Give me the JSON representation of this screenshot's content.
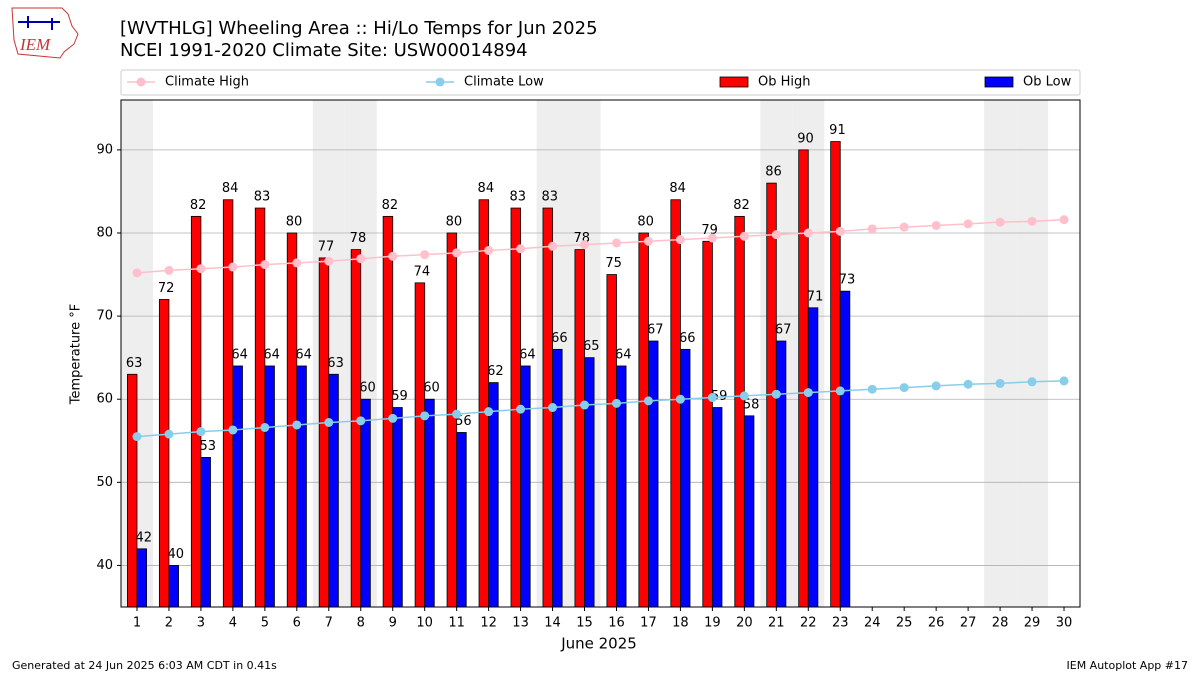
{
  "chart_data": {
    "type": "bar",
    "logo_text": "IEM",
    "title": "[WVTHLG] Wheeling Area :: Hi/Lo Temps for Jun 2025",
    "subtitle": "NCEI 1991-2020 Climate Site: USW00014894",
    "x_label": "June 2025",
    "y_label": "Temperature °F",
    "footer_left": "Generated at 24 Jun 2025 6:03 AM CDT in 0.41s",
    "footer_right": "IEM Autoplot App #17",
    "x": [
      1,
      2,
      3,
      4,
      5,
      6,
      7,
      8,
      9,
      10,
      11,
      12,
      13,
      14,
      15,
      16,
      17,
      18,
      19,
      20,
      21,
      22,
      23,
      24,
      25,
      26,
      27,
      28,
      29,
      30
    ],
    "xlim": [
      0.5,
      30.5
    ],
    "xticks": [
      1,
      2,
      3,
      4,
      5,
      6,
      7,
      8,
      9,
      10,
      11,
      12,
      13,
      14,
      15,
      16,
      17,
      18,
      19,
      20,
      21,
      22,
      23,
      24,
      25,
      26,
      27,
      28,
      29,
      30
    ],
    "ylim": [
      35,
      96
    ],
    "yticks": [
      40,
      50,
      60,
      70,
      80,
      90
    ],
    "grid": true,
    "shaded_days": [
      1,
      7,
      8,
      14,
      15,
      21,
      22,
      28,
      29
    ],
    "legend": "top",
    "series": [
      {
        "name": "Climate High",
        "kind": "line",
        "color": "#ffc0cb",
        "values": [
          75.2,
          75.5,
          75.7,
          75.9,
          76.2,
          76.4,
          76.6,
          76.9,
          77.2,
          77.4,
          77.6,
          77.9,
          78.1,
          78.4,
          78.6,
          78.8,
          79.0,
          79.2,
          79.4,
          79.6,
          79.8,
          80.0,
          80.2,
          80.5,
          80.7,
          80.9,
          81.1,
          81.3,
          81.4,
          81.6
        ]
      },
      {
        "name": "Climate Low",
        "kind": "line",
        "color": "#87ceeb",
        "values": [
          55.5,
          55.8,
          56.1,
          56.3,
          56.6,
          56.9,
          57.2,
          57.4,
          57.7,
          58.0,
          58.2,
          58.5,
          58.8,
          59.0,
          59.3,
          59.5,
          59.8,
          60.0,
          60.2,
          60.4,
          60.6,
          60.8,
          61.0,
          61.2,
          61.4,
          61.6,
          61.8,
          61.9,
          62.1,
          62.2
        ]
      },
      {
        "name": "Ob High",
        "kind": "bar",
        "color": "#ff0000",
        "values": [
          63,
          72,
          82,
          84,
          83,
          80,
          77,
          78,
          82,
          74,
          80,
          84,
          83,
          83,
          78,
          75,
          80,
          84,
          79,
          82,
          86,
          90,
          91,
          null,
          null,
          null,
          null,
          null,
          null,
          null
        ]
      },
      {
        "name": "Ob Low",
        "kind": "bar",
        "color": "#0000ff",
        "values": [
          42,
          40,
          53,
          64,
          64,
          64,
          63,
          60,
          59,
          60,
          56,
          62,
          64,
          66,
          65,
          64,
          67,
          66,
          59,
          58,
          67,
          71,
          73,
          null,
          null,
          null,
          null,
          null,
          null,
          null
        ]
      }
    ]
  }
}
